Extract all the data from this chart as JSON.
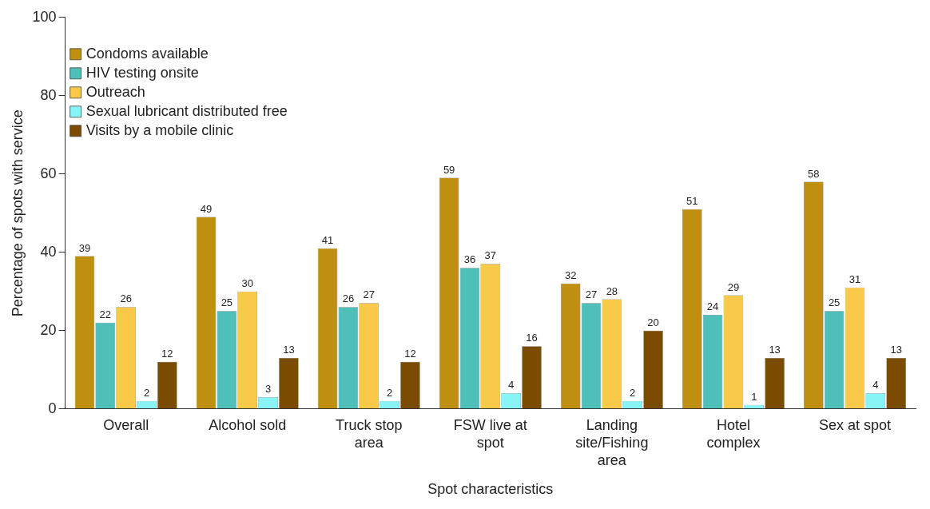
{
  "chart_data": {
    "type": "bar",
    "xlabel": "Spot characteristics",
    "ylabel": "Percentage of spots with service",
    "categories": [
      "Overall",
      "Alcohol sold",
      "Truck stop area",
      "FSW live at spot",
      "Landing site/Fishing area",
      "Hotel complex",
      "Sex at spot"
    ],
    "series": [
      {
        "name": "Condoms available",
        "color": "#bf8f0f",
        "values": [
          39,
          49,
          41,
          59,
          32,
          51,
          58
        ]
      },
      {
        "name": "HIV testing onsite",
        "color": "#4fbfb9",
        "values": [
          22,
          25,
          26,
          36,
          27,
          24,
          25
        ]
      },
      {
        "name": "Outreach",
        "color": "#fbc94a",
        "values": [
          26,
          30,
          27,
          37,
          28,
          29,
          31
        ]
      },
      {
        "name": "Sexual lubricant distributed free",
        "color": "#88f4f6",
        "values": [
          2,
          3,
          2,
          4,
          2,
          1,
          4
        ]
      },
      {
        "name": "Visits by a mobile clinic",
        "color": "#7a4b00",
        "values": [
          12,
          13,
          12,
          16,
          20,
          13,
          13
        ]
      }
    ],
    "ylim": [
      0,
      100
    ],
    "yticks": [
      0,
      20,
      40,
      60,
      80,
      100
    ],
    "grid": false,
    "legend": "top left",
    "data_labels": true
  }
}
